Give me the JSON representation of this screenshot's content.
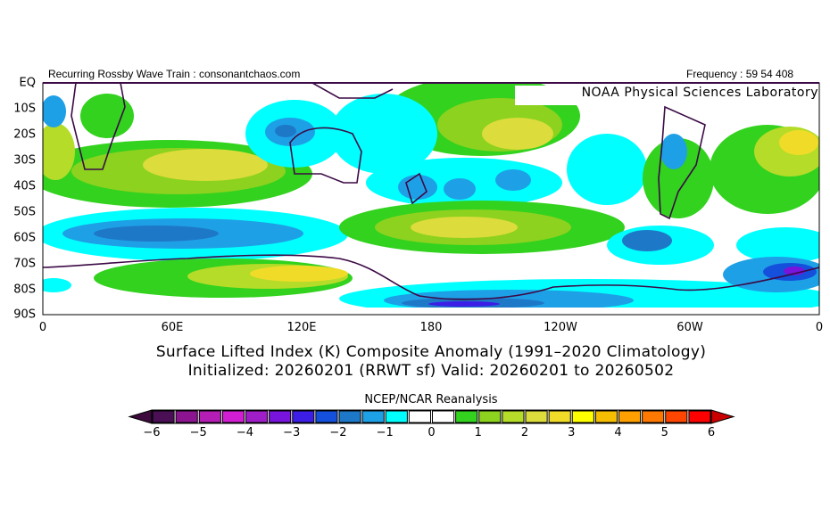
{
  "header": {
    "left": "Recurring Rossby Wave Train : consonantchaos.com",
    "right": "Frequency : 59 54 408",
    "lab": "NOAA Physical Sciences Laboratory"
  },
  "lat_labels": [
    "EQ",
    "10S",
    "20S",
    "30S",
    "40S",
    "50S",
    "60S",
    "70S",
    "80S",
    "90S"
  ],
  "lon_labels": [
    "0",
    "60E",
    "120E",
    "180",
    "120W",
    "60W",
    "0"
  ],
  "title_line1": "Surface Lifted Index (K) Composite Anomaly (1991–2020 Climatology)",
  "title_line2": "Initialized: 20260201 (RRWT sf) Valid: 20260201 to 20260502",
  "colorbar": {
    "title": "NCEP/NCAR Reanalysis",
    "ticks": [
      "-6",
      "-5",
      "-4",
      "-3",
      "-2",
      "-1",
      "0",
      "1",
      "2",
      "3",
      "4",
      "5",
      "6"
    ],
    "range": [
      -6,
      6
    ],
    "step": 0.5,
    "low_extend_color": "#3c0a3c",
    "high_extend_color": "#c80000",
    "colors": [
      "#4a0f55",
      "#8c1490",
      "#b41eb4",
      "#d21ed2",
      "#a01ec8",
      "#7814dc",
      "#3c1ee6",
      "#1450dc",
      "#1e78c8",
      "#1ea0e6",
      "#00ffff",
      "#ffffff",
      "#ffffff",
      "#32d21e",
      "#8cd21e",
      "#b4dc28",
      "#dcdc3c",
      "#f0dc28",
      "#ffff00",
      "#f5be00",
      "#ffa000",
      "#ff7800",
      "#ff4600",
      "#ff0000"
    ]
  },
  "coastline_color": "#3c0a46"
}
